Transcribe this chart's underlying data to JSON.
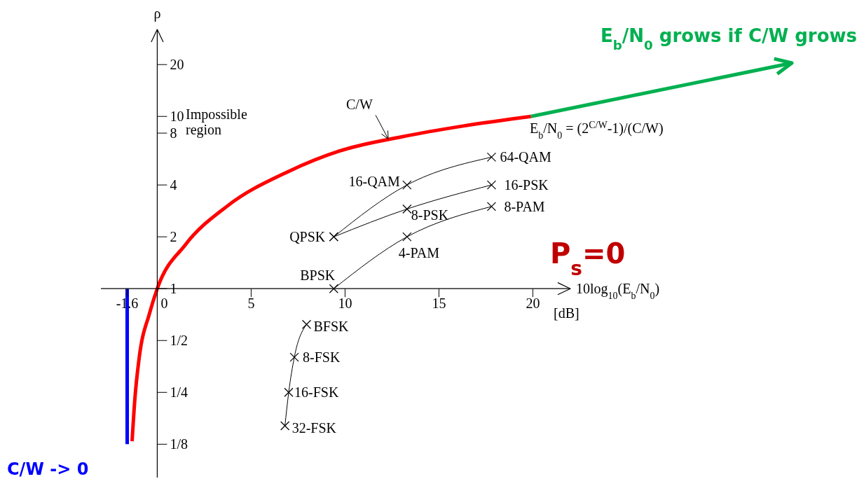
{
  "chart_data": {
    "type": "line",
    "xlabel": "10log$_{10}$(E$_{b}$/N$_{0}$)",
    "ylabel": "ρ",
    "log": "y",
    "xlim": [
      -3,
      22
    ],
    "xticks": [
      -1.6,
      0,
      5,
      10,
      15,
      20
    ],
    "ylim": [
      0.08,
      32
    ],
    "yticks": [
      {
        "value": 0.125,
        "label": "1/8"
      },
      {
        "value": 0.25,
        "label": "1/4"
      },
      {
        "value": 0.5,
        "label": "1/2"
      },
      1,
      2,
      4,
      8,
      10,
      20
    ],
    "series": [
      {
        "color": "#ff0000",
        "marker": "none",
        "x": [
          -1.34,
          -1.19,
          -0.97,
          -0.41,
          0,
          1.5,
          3.7,
          7,
          9.7,
          13,
          16.3,
          19.9
        ],
        "values": [
          0.13,
          0.23,
          0.39,
          0.72,
          1,
          1.8,
          3,
          4.8,
          6.3,
          7.6,
          8.8,
          10
        ]
      },
      {
        "color": "#0000ff",
        "marker": "none",
        "x": [
          -1.6,
          -1.6
        ],
        "values": [
          1,
          0.125
        ]
      },
      {
        "color": "#000000",
        "marker": "cross",
        "x": [
          9.4,
          13.3,
          17.8
        ],
        "values": [
          2,
          4,
          5.8
        ]
      },
      {
        "color": "#000000",
        "marker": "cross",
        "x": [
          9.4,
          13.3,
          17.8
        ],
        "values": [
          2,
          2.9,
          4
        ]
      },
      {
        "color": "#000000",
        "marker": "cross",
        "x": [
          9.4,
          13.3,
          17.8
        ],
        "values": [
          1,
          2,
          3
        ]
      },
      {
        "color": "#000000",
        "marker": "cross",
        "x": [
          6.8,
          7.0,
          7.3,
          7.95
        ],
        "values": [
          0.16,
          0.25,
          0.4,
          0.62
        ]
      }
    ],
    "annotations": [
      "Impossible region",
      {
        "text": "C/W",
        "x": 12.3,
        "y": 7.4
      },
      "E$_{b}$/N$_{0}$ = (2$^{C/W}$-1)/(C/W)",
      "P$_{s}$=0",
      "E$_{b}$/N$_{0}$ grows if C/W grows",
      "C/W -> 0",
      "[dB]",
      {
        "text": "64-QAM",
        "x": 17.8,
        "y": 5.8
      },
      {
        "text": "16-PSK",
        "x": 17.8,
        "y": 4
      },
      {
        "text": "8-PAM",
        "x": 17.8,
        "y": 3
      },
      {
        "text": "16-QAM",
        "x": 13.3,
        "y": 4
      },
      {
        "text": "8-PSK",
        "x": 13.3,
        "y": 2.9
      },
      {
        "text": "4-PAM",
        "x": 13.3,
        "y": 2
      },
      {
        "text": "QPSK",
        "x": 9.4,
        "y": 2
      },
      {
        "text": "BPSK",
        "x": 9.4,
        "y": 1
      },
      {
        "text": "BFSK",
        "x": 7.95,
        "y": 0.62
      },
      {
        "text": "8-FSK",
        "x": 7.3,
        "y": 0.4
      },
      {
        "text": "16-FSK",
        "x": 7.0,
        "y": 0.25
      },
      {
        "text": "32-FSK",
        "x": 6.8,
        "y": 0.16
      }
    ]
  }
}
